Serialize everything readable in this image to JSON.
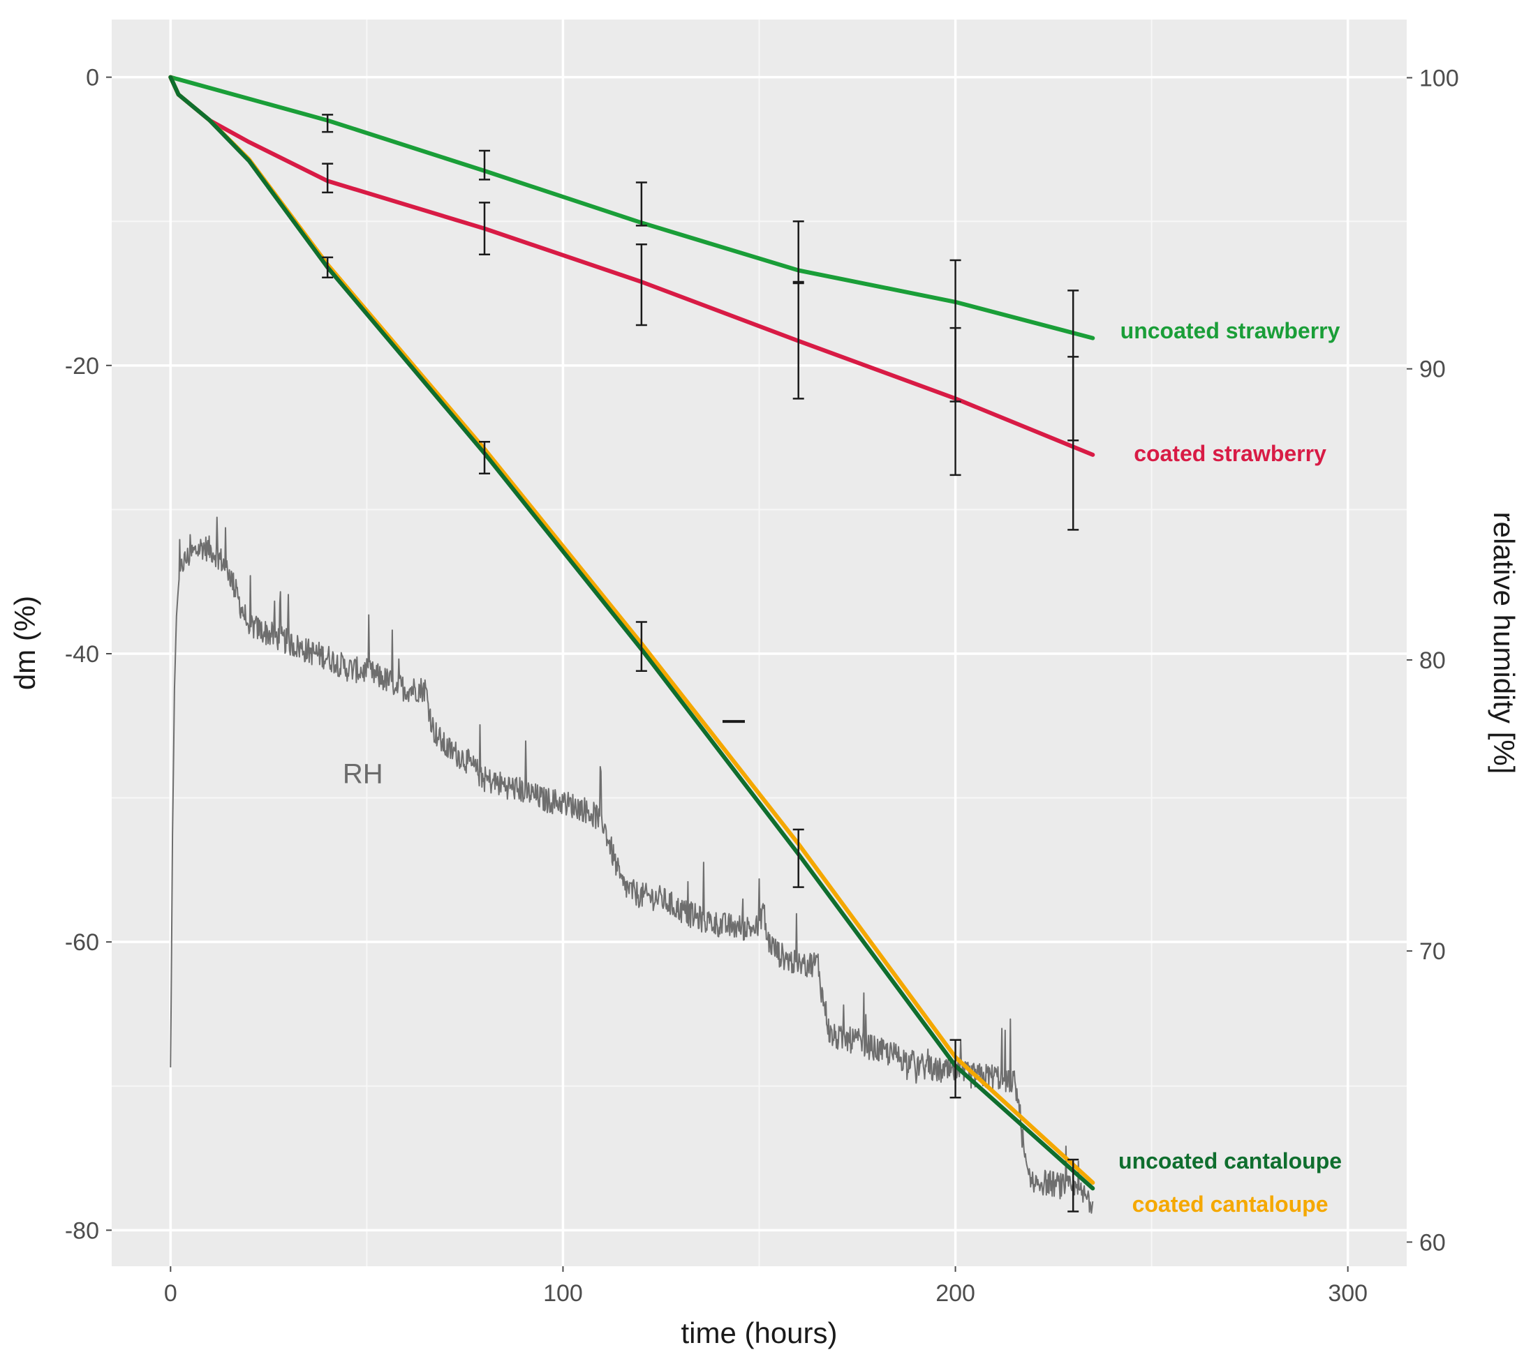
{
  "chart_data": {
    "type": "line",
    "xlabel": "time (hours)",
    "ylabel": "dm (%)",
    "y2label": "relative humidity [%]",
    "xlim": [
      -15,
      315
    ],
    "ylim": [
      -82.5,
      4
    ],
    "y2lim": [
      59.17,
      102
    ],
    "x_ticks": [
      0,
      100,
      200,
      300
    ],
    "y_ticks": [
      0,
      -20,
      -40,
      -60,
      -80
    ],
    "y2_ticks": [
      100,
      90,
      80,
      70,
      60
    ],
    "grid": true,
    "background": "#ebebeb",
    "series": [
      {
        "name": "uncoated strawberry",
        "color": "#1a9e38",
        "x": [
          0,
          40,
          80,
          120,
          160,
          200,
          235
        ],
        "y": [
          0,
          -3,
          -6.5,
          -10.1,
          -13.4,
          -15.6,
          -18.1
        ],
        "errors": {
          "x": [
            40,
            80,
            120,
            160,
            200,
            230
          ],
          "y": [
            -3.2,
            -6.1,
            -8.8,
            -12.1,
            -17.6,
            -20
          ],
          "err": [
            0.6,
            1.0,
            1.5,
            2.1,
            4.9,
            5.2
          ]
        }
      },
      {
        "name": "coated strawberry",
        "color": "#d81b45",
        "x": [
          0,
          2,
          10,
          20,
          40,
          80,
          120,
          160,
          200,
          235
        ],
        "y": [
          0,
          -1.2,
          -3,
          -4.5,
          -7.2,
          -10.5,
          -14.2,
          -18.3,
          -22.3,
          -26.2
        ],
        "errors": {
          "x": [
            40,
            80,
            120,
            160,
            200,
            230
          ],
          "y": [
            -7,
            -10.5,
            -14.4,
            -18.3,
            -22.5,
            -25.4
          ],
          "err": [
            1.0,
            1.8,
            2.8,
            4.0,
            5.1,
            6.0
          ]
        }
      },
      {
        "name": "uncoated cantaloupe",
        "color": "#0f6e2e",
        "x": [
          0,
          2,
          10,
          20,
          40,
          80,
          120,
          160,
          200,
          235
        ],
        "y": [
          0,
          -1.2,
          -3,
          -5.8,
          -13.2,
          -26.1,
          -39.7,
          -53.9,
          -68.6,
          -77.1
        ],
        "errors": {
          "x": [
            40,
            80,
            120,
            160,
            200,
            230
          ],
          "y": [
            -13.2,
            -26.4,
            -39.5,
            -54.2,
            -68.8,
            -76.9
          ],
          "err": [
            0.7,
            1.1,
            1.7,
            2.0,
            2.0,
            1.8
          ]
        }
      },
      {
        "name": "coated cantaloupe",
        "color": "#f5a800",
        "x": [
          0,
          2,
          10,
          20,
          40,
          80,
          120,
          160,
          200,
          235
        ],
        "y": [
          0,
          -1.2,
          -3,
          -5.7,
          -13,
          -25.8,
          -39.3,
          -53.2,
          -68,
          -76.7
        ],
        "errors": {
          "x": [],
          "y": [],
          "err": []
        }
      }
    ],
    "rh_series": {
      "name": "RH",
      "color": "#6e6e6e",
      "axis": "right",
      "x": [
        0,
        0.5,
        1,
        1.5,
        2,
        3,
        5,
        8,
        10,
        12,
        15,
        18,
        20,
        25,
        30,
        35,
        40,
        45,
        50,
        55,
        60,
        65,
        66,
        67,
        70,
        75,
        80,
        85,
        90,
        95,
        100,
        105,
        110,
        115,
        118,
        120,
        125,
        130,
        135,
        140,
        145,
        150,
        151,
        152,
        155,
        160,
        165,
        166,
        167,
        168,
        170,
        175,
        180,
        185,
        190,
        195,
        200,
        205,
        210,
        215,
        216,
        217,
        218,
        220,
        225,
        230,
        235
      ],
      "y": [
        66,
        74,
        79,
        81.5,
        82.5,
        83.3,
        83.6,
        83.9,
        83.8,
        83.6,
        83.0,
        81.8,
        81.2,
        80.9,
        80.6,
        80.3,
        80.1,
        79.7,
        79.6,
        79.3,
        79.0,
        79.0,
        78.2,
        77.6,
        77.0,
        76.6,
        75.9,
        75.7,
        75.5,
        75.2,
        75.1,
        74.9,
        74.5,
        72.3,
        72.0,
        71.9,
        71.8,
        71.4,
        71.1,
        70.9,
        70.8,
        70.8,
        71.6,
        70.4,
        69.9,
        69.5,
        69.6,
        68.5,
        67.9,
        67.1,
        67.0,
        66.9,
        66.6,
        66.4,
        66.1,
        65.9,
        65.8,
        65.7,
        65.7,
        65.5,
        64.9,
        63.7,
        62.5,
        62.1,
        62.0,
        61.8,
        61.4
      ],
      "noise_amplitude": 0.45
    },
    "annotations": [
      {
        "text": "RH",
        "x": 49,
        "y": -48.3
      },
      {
        "text": "uncoated strawberry",
        "x": 270,
        "y": -17.6,
        "color": "#1a9e38"
      },
      {
        "text": "coated strawberry",
        "x": 270,
        "y": -26.1,
        "color": "#d81b45"
      },
      {
        "text": "uncoated cantaloupe",
        "x": 270,
        "y": -75.2,
        "color": "#0f6e2e"
      },
      {
        "text": "coated cantaloupe",
        "x": 270,
        "y": -78.2,
        "color": "#f5a800"
      }
    ],
    "stray_marks": [
      {
        "x": 143.5,
        "y": -44.7
      }
    ]
  }
}
